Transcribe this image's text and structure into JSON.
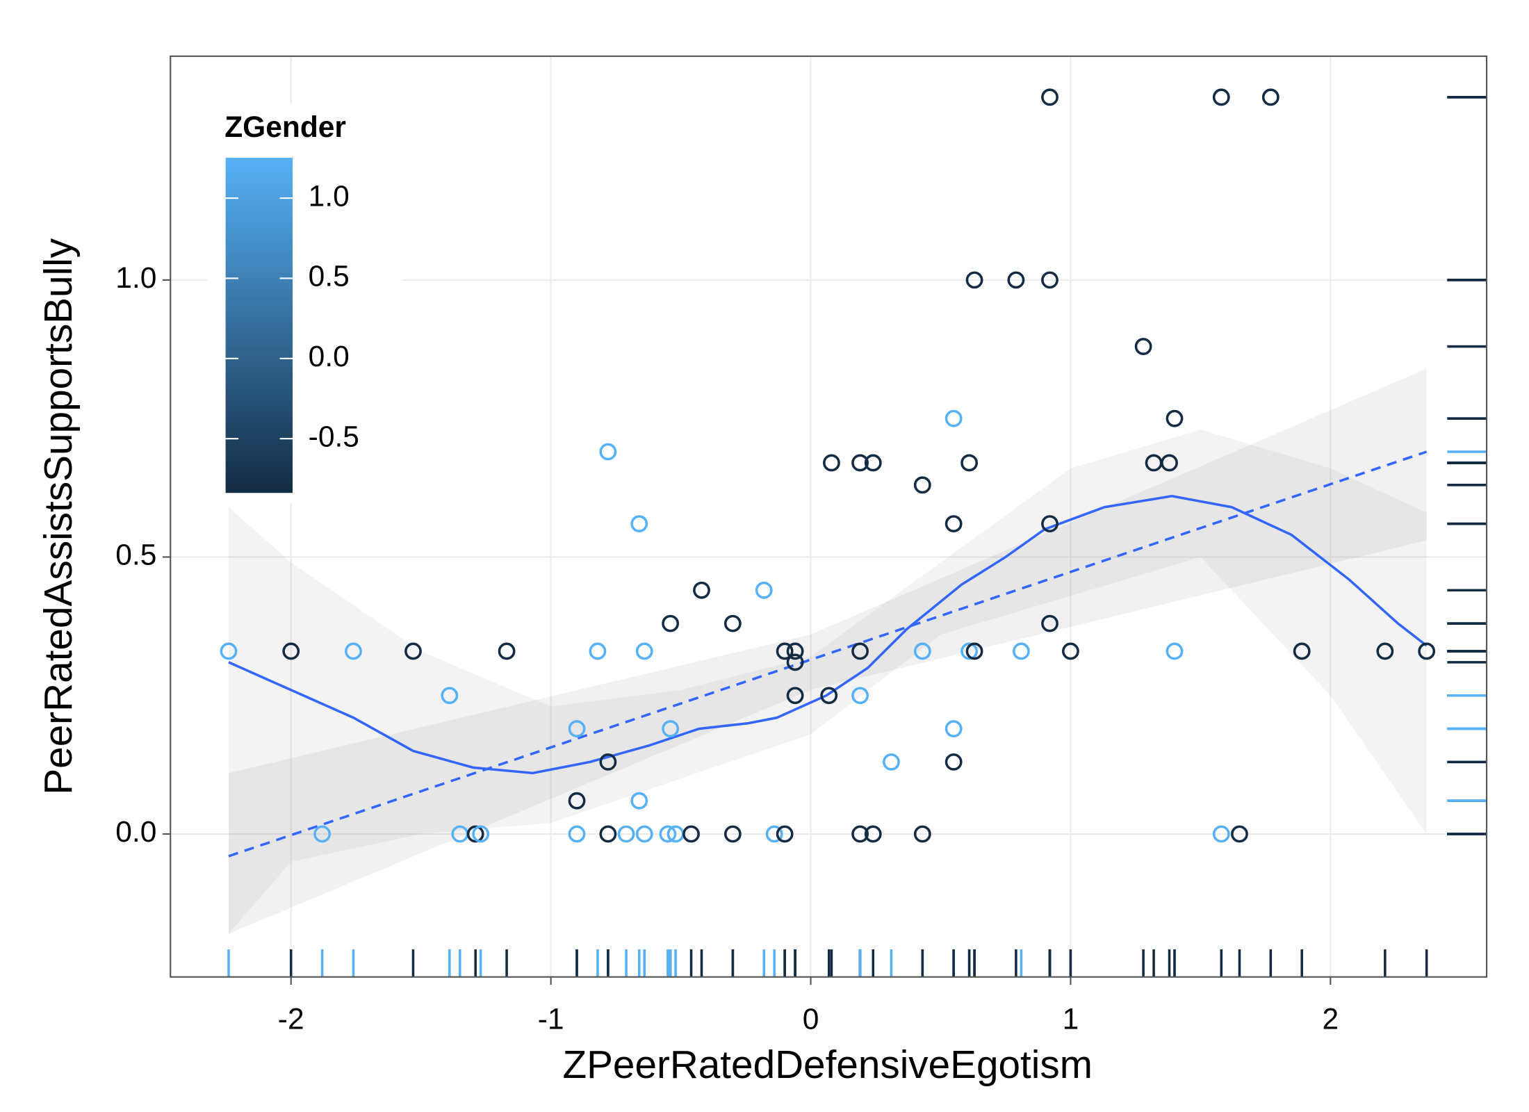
{
  "chart_data": {
    "type": "scatter",
    "x_label": "ZPeerRatedDefensiveEgotism",
    "y_label": "PeerRatedAssistsSupportsBully",
    "xlim": [
      -2.464,
      2.601
    ],
    "ylim": [
      -0.258,
      1.404
    ],
    "xticks": [
      -2,
      -1,
      0,
      1,
      2
    ],
    "yticks": [
      {
        "value": 0,
        "label": "0.0"
      },
      0.5,
      {
        "value": 1,
        "label": "1.0"
      }
    ],
    "grid": true,
    "x": [
      -2.24,
      -2.0,
      -1.76,
      -1.53,
      -1.17,
      -0.82,
      -0.64,
      -0.1,
      -0.06,
      -0.06,
      0.19,
      0.43,
      0.61,
      0.63,
      0.81,
      1.0,
      1.4,
      1.89,
      2.21,
      2.37,
      -1.88,
      -1.35,
      -1.29,
      -1.27,
      -0.9,
      -0.78,
      -0.71,
      -0.64,
      -0.55,
      -0.52,
      -0.46,
      -0.3,
      -0.14,
      -0.1,
      0.19,
      0.24,
      0.43,
      1.58,
      1.65,
      0.92,
      1.58,
      1.77,
      0.63,
      0.79,
      0.92,
      1.28,
      0.55,
      1.4,
      -0.78,
      0.08,
      0.19,
      0.24,
      0.61,
      1.32,
      1.38,
      0.43,
      -0.66,
      0.55,
      0.92,
      -0.18,
      -0.42,
      -0.54,
      -0.3,
      0.92,
      -1.39,
      -0.06,
      0.07,
      0.19,
      -0.9,
      -0.54,
      0.55,
      -0.78,
      0.31,
      0.55,
      -0.9,
      -0.66
    ],
    "y": [
      0.33,
      0.33,
      0.33,
      0.33,
      0.33,
      0.33,
      0.33,
      0.33,
      0.33,
      0.31,
      0.33,
      0.33,
      0.33,
      0.33,
      0.33,
      0.33,
      0.33,
      0.33,
      0.33,
      0.33,
      0,
      0,
      0,
      0,
      0,
      0,
      0,
      0,
      0,
      0,
      0,
      0,
      0,
      0,
      0,
      0,
      0,
      0,
      0,
      1.33,
      1.33,
      1.33,
      1,
      1,
      1,
      0.88,
      0.75,
      0.75,
      0.69,
      0.67,
      0.67,
      0.67,
      0.67,
      0.67,
      0.67,
      0.63,
      0.56,
      0.56,
      0.56,
      0.44,
      0.44,
      0.38,
      0.38,
      0.38,
      0.25,
      0.25,
      0.25,
      0.25,
      0.19,
      0.19,
      0.19,
      0.13,
      0.13,
      0.13,
      0.06,
      0.06
    ],
    "z": [
      1.25,
      -0.84,
      1.25,
      -0.84,
      -0.84,
      1.25,
      1.25,
      -0.84,
      -0.84,
      -0.84,
      -0.84,
      1.25,
      1.25,
      -0.84,
      1.25,
      -0.84,
      1.25,
      -0.84,
      -0.84,
      -0.84,
      1.25,
      1.25,
      -0.84,
      1.25,
      1.25,
      -0.84,
      1.25,
      1.25,
      1.25,
      1.25,
      -0.84,
      -0.84,
      1.25,
      -0.84,
      -0.84,
      -0.84,
      -0.84,
      1.25,
      -0.84,
      -0.84,
      -0.84,
      -0.84,
      -0.84,
      -0.84,
      -0.84,
      -0.84,
      1.25,
      -0.84,
      1.25,
      -0.84,
      -0.84,
      -0.84,
      -0.84,
      -0.84,
      -0.84,
      -0.84,
      1.25,
      -0.84,
      -0.84,
      1.25,
      -0.84,
      -0.84,
      -0.84,
      -0.84,
      1.25,
      -0.84,
      -0.84,
      1.25,
      1.25,
      1.25,
      1.25,
      -0.84,
      1.25,
      -0.84,
      -0.84,
      1.25
    ],
    "colorbar": {
      "title": "ZGender",
      "lim": [
        -0.838,
        1.252
      ],
      "ticks": [
        {
          "value": 1,
          "label": "1.0"
        },
        0.5,
        {
          "value": 0,
          "label": "0.0"
        },
        -0.5
      ],
      "low_color": "#132B43",
      "high_color": "#56B1F7"
    },
    "fit_color": "#3366FF",
    "band_color": "#999999",
    "smooth": {
      "x": [
        -2.24,
        -2.0,
        -1.76,
        -1.53,
        -1.3,
        -1.07,
        -0.85,
        -0.62,
        -0.43,
        -0.24,
        -0.13,
        0.06,
        0.22,
        0.37,
        0.58,
        0.75,
        0.9,
        1.13,
        1.39,
        1.62,
        1.85,
        2.07,
        2.26,
        2.37
      ],
      "y": [
        0.31,
        0.26,
        0.21,
        0.15,
        0.12,
        0.11,
        0.13,
        0.16,
        0.19,
        0.2,
        0.21,
        0.25,
        0.3,
        0.37,
        0.45,
        0.5,
        0.55,
        0.59,
        0.61,
        0.59,
        0.54,
        0.46,
        0.38,
        0.34
      ]
    },
    "smooth_band": {
      "x": [
        -2.24,
        -2.0,
        -1.5,
        -1.0,
        -0.5,
        0,
        0.5,
        1.0,
        1.5,
        2.0,
        2.37
      ],
      "lower": [
        -0.18,
        -0.05,
        0.0,
        0.02,
        0.1,
        0.18,
        0.36,
        0.43,
        0.5,
        0.25,
        0.0
      ],
      "upper": [
        0.59,
        0.49,
        0.33,
        0.23,
        0.26,
        0.32,
        0.49,
        0.66,
        0.73,
        0.66,
        0.58
      ]
    },
    "linear": {
      "x": [
        -2.24,
        2.37
      ],
      "y": [
        -0.04,
        0.69
      ]
    },
    "linear_band": {
      "x": [
        -2.24,
        0,
        2.37
      ],
      "lower": [
        -0.18,
        0.26,
        0.53
      ],
      "upper": [
        0.11,
        0.36,
        0.84
      ]
    }
  }
}
